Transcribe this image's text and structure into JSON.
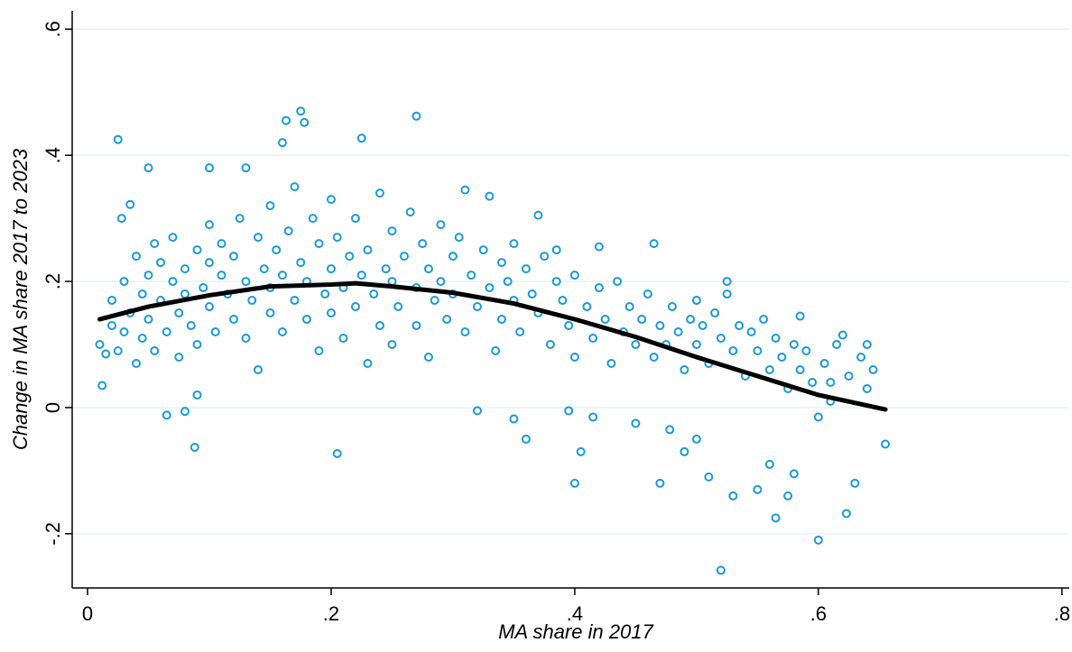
{
  "chart_data": {
    "type": "scatter",
    "xlabel": "MA share in 2017",
    "ylabel": "Change in MA share 2017 to 2023",
    "xlim": [
      -0.0126,
      0.806
    ],
    "ylim": [
      -0.286,
      0.629
    ],
    "xticks": [
      0,
      {
        "value": 0.2,
        "label": ".2"
      },
      {
        "value": 0.4,
        "label": ".4"
      },
      {
        "value": 0.6,
        "label": ".6"
      },
      {
        "value": 0.8,
        "label": ".8"
      }
    ],
    "yticks": [
      {
        "value": -0.2,
        "label": "-.2"
      },
      0,
      {
        "value": 0.2,
        "label": ".2"
      },
      {
        "value": 0.4,
        "label": ".4"
      },
      {
        "value": 0.6,
        "label": ".6"
      }
    ],
    "grid": true,
    "series": [
      {
        "type": "scatter",
        "color": "#1a9ad6",
        "x": [
          0.025,
          0.05,
          0.088,
          0.175,
          0.163,
          0.178,
          0.27,
          0.225,
          0.205,
          0.52,
          0.6,
          0.565,
          0.623,
          0.4,
          0.47,
          0.64,
          0.655,
          0.63,
          0.575,
          0.53,
          0.525,
          0.465,
          0.37,
          0.33,
          0.31,
          0.16,
          0.13,
          0.1,
          0.028,
          0.035,
          0.012,
          0.065,
          0.08,
          0.09,
          0.36,
          0.35,
          0.32,
          0.395,
          0.415,
          0.405,
          0.45,
          0.478,
          0.5,
          0.49,
          0.51,
          0.55,
          0.56,
          0.58,
          0.6,
          0.62,
          0.645,
          0.585,
          0.42,
          0.385,
          0.61,
          0.01,
          0.015,
          0.02,
          0.02,
          0.025,
          0.03,
          0.03,
          0.035,
          0.04,
          0.04,
          0.045,
          0.045,
          0.05,
          0.05,
          0.055,
          0.055,
          0.06,
          0.06,
          0.065,
          0.07,
          0.07,
          0.075,
          0.075,
          0.08,
          0.08,
          0.085,
          0.09,
          0.09,
          0.095,
          0.1,
          0.1,
          0.1,
          0.105,
          0.11,
          0.11,
          0.115,
          0.12,
          0.12,
          0.125,
          0.13,
          0.13,
          0.135,
          0.14,
          0.14,
          0.145,
          0.15,
          0.15,
          0.15,
          0.155,
          0.16,
          0.16,
          0.165,
          0.17,
          0.17,
          0.175,
          0.18,
          0.18,
          0.185,
          0.19,
          0.19,
          0.195,
          0.2,
          0.2,
          0.2,
          0.205,
          0.21,
          0.21,
          0.215,
          0.22,
          0.22,
          0.225,
          0.23,
          0.23,
          0.235,
          0.24,
          0.24,
          0.245,
          0.25,
          0.25,
          0.25,
          0.255,
          0.26,
          0.265,
          0.27,
          0.27,
          0.275,
          0.28,
          0.28,
          0.285,
          0.29,
          0.29,
          0.295,
          0.3,
          0.3,
          0.305,
          0.31,
          0.315,
          0.32,
          0.325,
          0.33,
          0.335,
          0.34,
          0.34,
          0.345,
          0.35,
          0.35,
          0.355,
          0.36,
          0.365,
          0.37,
          0.375,
          0.38,
          0.385,
          0.39,
          0.395,
          0.4,
          0.4,
          0.41,
          0.415,
          0.42,
          0.425,
          0.43,
          0.435,
          0.44,
          0.445,
          0.45,
          0.455,
          0.46,
          0.465,
          0.47,
          0.475,
          0.48,
          0.485,
          0.49,
          0.495,
          0.5,
          0.5,
          0.505,
          0.51,
          0.515,
          0.52,
          0.525,
          0.53,
          0.535,
          0.54,
          0.545,
          0.55,
          0.555,
          0.56,
          0.565,
          0.57,
          0.575,
          0.58,
          0.585,
          0.59,
          0.595,
          0.605,
          0.61,
          0.615,
          0.625,
          0.635,
          0.64
        ],
        "values": [
          0.425,
          0.38,
          -0.063,
          0.47,
          0.455,
          0.452,
          0.462,
          0.427,
          -0.073,
          -0.258,
          -0.21,
          -0.175,
          -0.168,
          -0.12,
          -0.12,
          0.1,
          -0.058,
          -0.12,
          -0.14,
          -0.14,
          0.2,
          0.26,
          0.305,
          0.335,
          0.345,
          0.42,
          0.38,
          0.38,
          0.3,
          0.322,
          0.035,
          -0.012,
          -0.006,
          0.02,
          -0.05,
          -0.018,
          -0.005,
          -0.005,
          -0.015,
          -0.07,
          -0.025,
          -0.035,
          -0.05,
          -0.07,
          -0.11,
          -0.13,
          -0.09,
          -0.105,
          -0.015,
          0.115,
          0.06,
          0.145,
          0.255,
          0.25,
          0.01,
          0.1,
          0.085,
          0.13,
          0.17,
          0.09,
          0.2,
          0.12,
          0.15,
          0.24,
          0.07,
          0.18,
          0.11,
          0.21,
          0.14,
          0.26,
          0.09,
          0.17,
          0.23,
          0.12,
          0.2,
          0.27,
          0.15,
          0.08,
          0.22,
          0.18,
          0.13,
          0.25,
          0.1,
          0.19,
          0.23,
          0.16,
          0.29,
          0.12,
          0.21,
          0.26,
          0.18,
          0.14,
          0.24,
          0.3,
          0.2,
          0.11,
          0.17,
          0.27,
          0.06,
          0.22,
          0.15,
          0.32,
          0.19,
          0.25,
          0.12,
          0.21,
          0.28,
          0.17,
          0.35,
          0.23,
          0.14,
          0.2,
          0.3,
          0.26,
          0.09,
          0.18,
          0.22,
          0.15,
          0.33,
          0.27,
          0.19,
          0.11,
          0.24,
          0.16,
          0.3,
          0.21,
          0.07,
          0.25,
          0.18,
          0.13,
          0.34,
          0.22,
          0.2,
          0.28,
          0.1,
          0.16,
          0.24,
          0.31,
          0.19,
          0.13,
          0.26,
          0.22,
          0.08,
          0.17,
          0.29,
          0.2,
          0.14,
          0.24,
          0.18,
          0.27,
          0.12,
          0.21,
          0.16,
          0.25,
          0.19,
          0.09,
          0.23,
          0.14,
          0.2,
          0.26,
          0.17,
          0.12,
          0.22,
          0.18,
          0.15,
          0.24,
          0.1,
          0.2,
          0.17,
          0.13,
          0.21,
          0.08,
          0.16,
          0.11,
          0.19,
          0.14,
          0.07,
          0.2,
          0.12,
          0.16,
          0.1,
          0.14,
          0.18,
          0.08,
          0.13,
          0.1,
          0.16,
          0.12,
          0.06,
          0.14,
          0.1,
          0.17,
          0.13,
          0.07,
          0.15,
          0.11,
          0.18,
          0.09,
          0.13,
          0.05,
          0.12,
          0.09,
          0.14,
          0.06,
          0.11,
          0.08,
          0.03,
          0.1,
          0.06,
          0.09,
          0.04,
          0.07,
          0.04,
          0.1,
          0.05,
          0.08,
          0.03
        ]
      },
      {
        "type": "line",
        "color": "#000000",
        "x": [
          0.01,
          0.05,
          0.1,
          0.15,
          0.2,
          0.22,
          0.25,
          0.3,
          0.35,
          0.4,
          0.45,
          0.5,
          0.55,
          0.6,
          0.655
        ],
        "values": [
          0.14,
          0.16,
          0.178,
          0.192,
          0.195,
          0.197,
          0.192,
          0.182,
          0.165,
          0.14,
          0.112,
          0.08,
          0.05,
          0.02,
          -0.003
        ]
      }
    ]
  }
}
